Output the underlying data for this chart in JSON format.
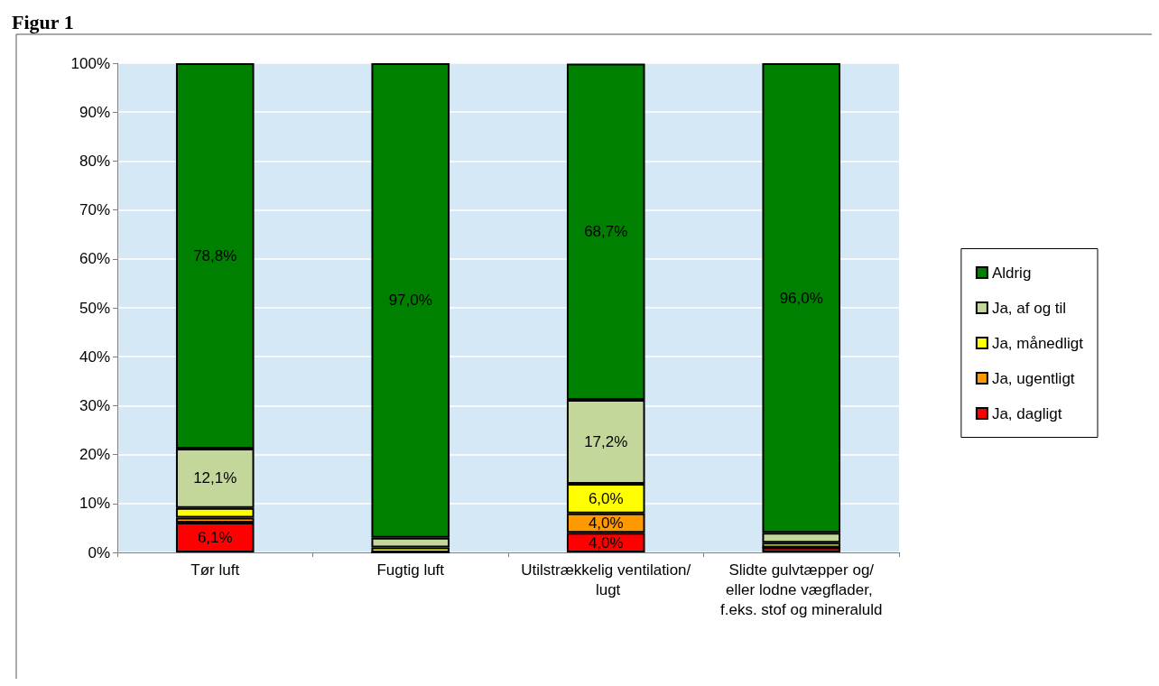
{
  "chart_data": {
    "type": "bar",
    "title": "Figur 1",
    "stacked": true,
    "categories": [
      "Tør luft",
      "Fugtig luft",
      "Utilstrækkelig ventilation/ lugt",
      "Slidte gulvtæpper og/eller lodne vægflader, f.eks. stof og mineraluld"
    ],
    "series": [
      {
        "name": "Ja, dagligt",
        "color": "#ff0000",
        "values": [
          6.1,
          0,
          4.0,
          1.0
        ],
        "value_labels": [
          "6,1%",
          null,
          "4,0%",
          null
        ]
      },
      {
        "name": "Ja, ugentligt",
        "color": "#ff9900",
        "values": [
          1.0,
          0,
          4.0,
          0
        ],
        "value_labels": [
          null,
          null,
          "4,0%",
          null
        ]
      },
      {
        "name": "Ja, månedligt",
        "color": "#ffff00",
        "values": [
          2.0,
          1.0,
          6.0,
          1.0
        ],
        "value_labels": [
          null,
          null,
          "6,0%",
          null
        ]
      },
      {
        "name": "Ja, af og til",
        "color": "#c4d79b",
        "values": [
          12.1,
          2.0,
          17.2,
          2.0
        ],
        "value_labels": [
          "12,1%",
          null,
          "17,2%",
          null
        ]
      },
      {
        "name": "Aldrig",
        "color": "#008000",
        "values": [
          78.8,
          97.0,
          68.7,
          96.0
        ],
        "value_labels": [
          "78,8%",
          "97,0%",
          "68,7%",
          "96,0%"
        ]
      }
    ],
    "ylim": [
      0,
      100
    ],
    "yticks": [
      {
        "value": 0,
        "label": "0%"
      },
      {
        "value": 10,
        "label": "10%"
      },
      {
        "value": 20,
        "label": "20%"
      },
      {
        "value": 30,
        "label": "30%"
      },
      {
        "value": 40,
        "label": "40%"
      },
      {
        "value": 50,
        "label": "50%"
      },
      {
        "value": 60,
        "label": "60%"
      },
      {
        "value": 70,
        "label": "70%"
      },
      {
        "value": 80,
        "label": "80%"
      },
      {
        "value": 90,
        "label": "90%"
      },
      {
        "value": 100,
        "label": "100%"
      }
    ],
    "grid": "y",
    "legend": "right"
  }
}
